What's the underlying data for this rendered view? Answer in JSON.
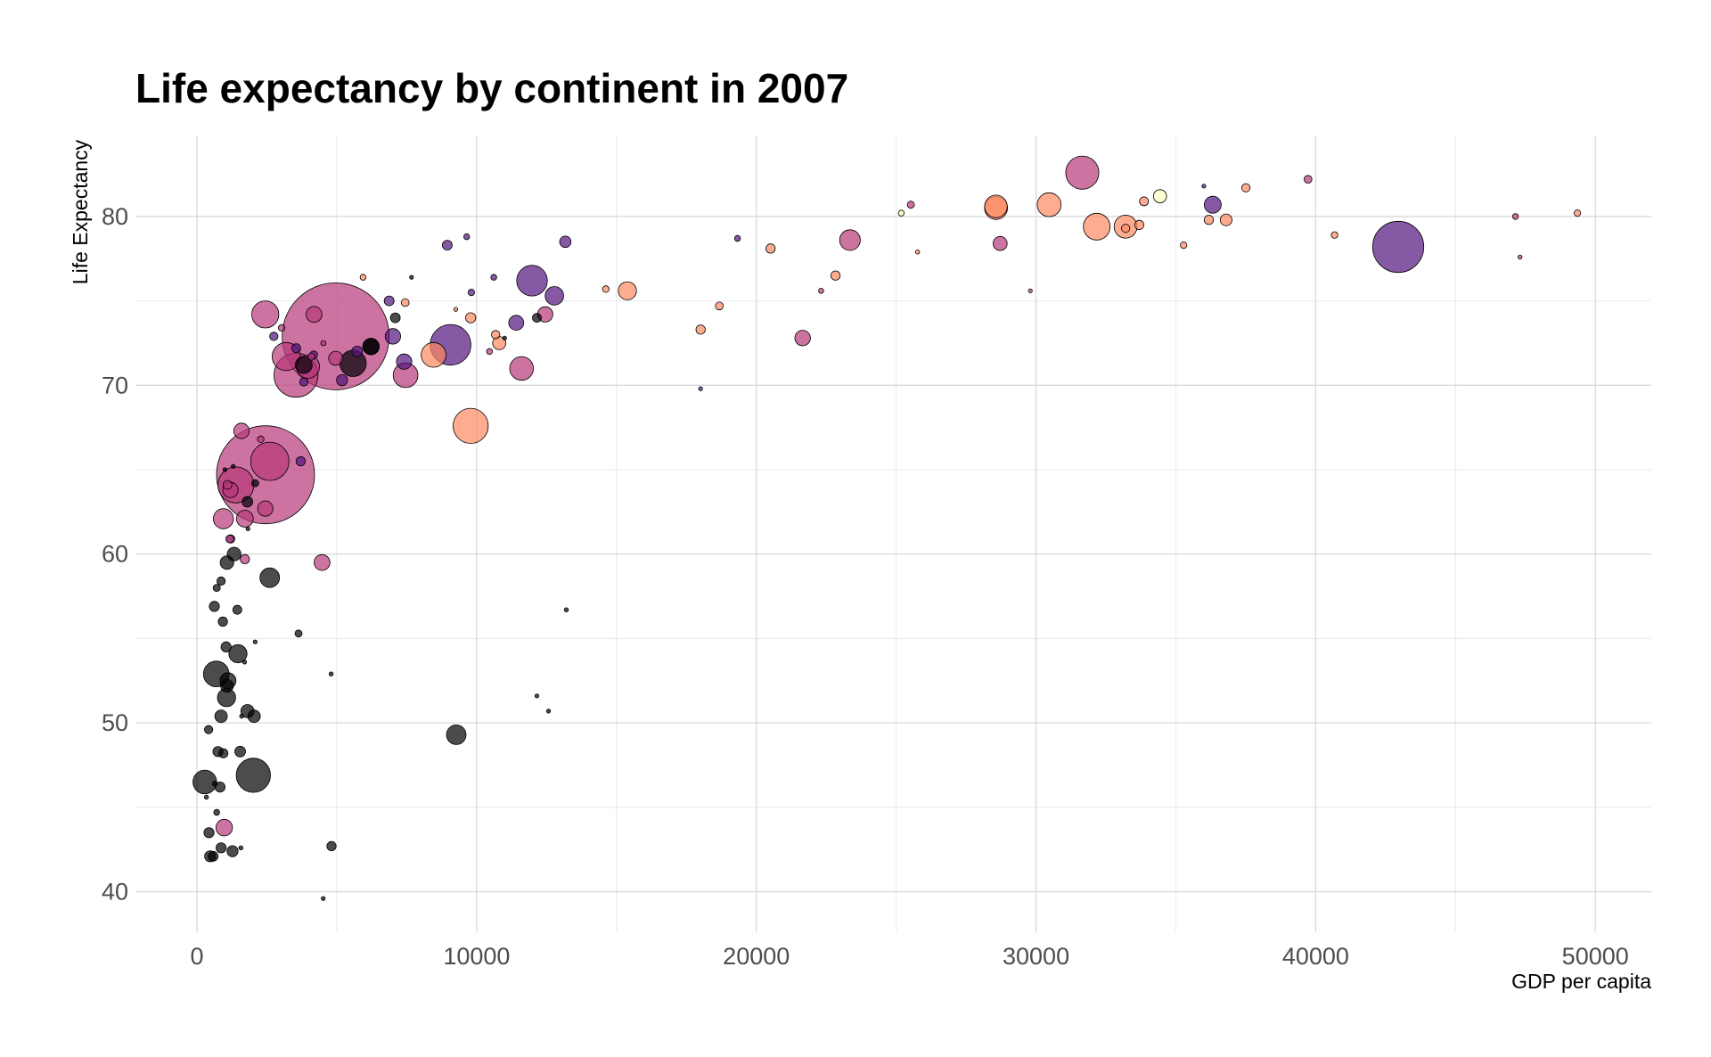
{
  "chart_data": {
    "type": "scatter",
    "title": "Life expectancy by continent in 2007",
    "xlabel": "GDP per capita",
    "ylabel": "Life Expectancy",
    "xlim": [
      -2200,
      52000
    ],
    "ylim": [
      37.6,
      84.8
    ],
    "x_ticks": [
      0,
      10000,
      20000,
      30000,
      40000,
      50000
    ],
    "x_tick_labels": [
      "0",
      "10000",
      "20000",
      "30000",
      "40000",
      "50000"
    ],
    "y_ticks": [
      40,
      50,
      60,
      70,
      80
    ],
    "y_tick_labels": [
      "40",
      "50",
      "60",
      "70",
      "80"
    ],
    "grid": true,
    "legend": "none",
    "point_alpha": 0.7,
    "colors": {
      "africa": "#000004",
      "americas": "#51127c",
      "asia": "#b73779",
      "europe": "#fc8961",
      "oceania": "#fcfdbf"
    },
    "points": [
      {
        "c": "asia",
        "x": 4959,
        "y": 72.9,
        "s": 1319
      },
      {
        "c": "asia",
        "x": 2452,
        "y": 64.7,
        "s": 1110
      },
      {
        "c": "americas",
        "x": 42952,
        "y": 78.2,
        "s": 301
      },
      {
        "c": "asia",
        "x": 3541,
        "y": 70.6,
        "s": 224
      },
      {
        "c": "americas",
        "x": 9066,
        "y": 72.4,
        "s": 190
      },
      {
        "c": "asia",
        "x": 2606,
        "y": 65.5,
        "s": 169
      },
      {
        "c": "africa",
        "x": 2014,
        "y": 46.9,
        "s": 135
      },
      {
        "c": "asia",
        "x": 1391,
        "y": 64.1,
        "s": 150
      },
      {
        "c": "europe",
        "x": 9786,
        "y": 67.6,
        "s": 142
      },
      {
        "c": "asia",
        "x": 31656,
        "y": 82.6,
        "s": 127
      },
      {
        "c": "americas",
        "x": 11978,
        "y": 76.2,
        "s": 109
      },
      {
        "c": "asia",
        "x": 3190,
        "y": 71.7,
        "s": 91
      },
      {
        "c": "africa",
        "x": 278,
        "y": 46.5,
        "s": 65
      },
      {
        "c": "africa",
        "x": 690,
        "y": 52.9,
        "s": 76
      },
      {
        "c": "asia",
        "x": 2442,
        "y": 74.2,
        "s": 85
      },
      {
        "c": "africa",
        "x": 5581,
        "y": 71.3,
        "s": 80
      },
      {
        "c": "europe",
        "x": 32170,
        "y": 79.4,
        "s": 82
      },
      {
        "c": "europe",
        "x": 30470,
        "y": 80.7,
        "s": 66
      },
      {
        "c": "asia",
        "x": 7458,
        "y": 70.6,
        "s": 71
      },
      {
        "c": "europe",
        "x": 8458,
        "y": 71.8,
        "s": 71
      },
      {
        "c": "europe",
        "x": 33203,
        "y": 79.4,
        "s": 61
      },
      {
        "c": "europe",
        "x": 28570,
        "y": 80.5,
        "s": 61
      },
      {
        "c": "europe",
        "x": 28569,
        "y": 80.6,
        "s": 59
      },
      {
        "c": "asia",
        "x": 3970,
        "y": 71.1,
        "s": 62
      },
      {
        "c": "asia",
        "x": 23348,
        "y": 78.6,
        "s": 49
      },
      {
        "c": "africa",
        "x": 9270,
        "y": 49.3,
        "s": 44
      },
      {
        "c": "asia",
        "x": 11606,
        "y": 71.0,
        "s": 65
      },
      {
        "c": "asia",
        "x": 4471,
        "y": 59.5,
        "s": 29
      },
      {
        "c": "americas",
        "x": 12779,
        "y": 75.3,
        "s": 40
      },
      {
        "c": "africa",
        "x": 2602,
        "y": 58.6,
        "s": 44
      },
      {
        "c": "africa",
        "x": 1463,
        "y": 54.1,
        "s": 38
      },
      {
        "c": "africa",
        "x": 1056,
        "y": 51.5,
        "s": 38
      },
      {
        "c": "africa",
        "x": 3820,
        "y": 71.2,
        "s": 33
      },
      {
        "c": "africa",
        "x": 6223,
        "y": 72.3,
        "s": 32
      },
      {
        "c": "africa",
        "x": 1107,
        "y": 52.5,
        "s": 30
      },
      {
        "c": "americas",
        "x": 36319,
        "y": 80.7,
        "s": 33
      },
      {
        "c": "asia",
        "x": 4185,
        "y": 74.2,
        "s": 29
      },
      {
        "c": "asia",
        "x": 21655,
        "y": 72.8,
        "s": 28
      },
      {
        "c": "americas",
        "x": 7006,
        "y": 72.9,
        "s": 28
      },
      {
        "c": "europe",
        "x": 15390,
        "y": 75.6,
        "s": 38
      },
      {
        "c": "europe",
        "x": 36798,
        "y": 79.8,
        "s": 16
      },
      {
        "c": "americas",
        "x": 11416,
        "y": 73.7,
        "s": 26
      },
      {
        "c": "asia",
        "x": 28718,
        "y": 78.4,
        "s": 23
      },
      {
        "c": "americas",
        "x": 7408,
        "y": 71.4,
        "s": 27
      },
      {
        "c": "asia",
        "x": 12452,
        "y": 74.2,
        "s": 27
      },
      {
        "c": "africa",
        "x": 1071,
        "y": 59.5,
        "s": 21
      },
      {
        "c": "africa",
        "x": 1328,
        "y": 60.0,
        "s": 22
      },
      {
        "c": "africa",
        "x": 470,
        "y": 42.1,
        "s": 14
      },
      {
        "c": "africa",
        "x": 863,
        "y": 50.4,
        "s": 18
      },
      {
        "c": "africa",
        "x": 1804,
        "y": 50.7,
        "s": 20
      },
      {
        "c": "africa",
        "x": 1544,
        "y": 48.3,
        "s": 13
      },
      {
        "c": "asia",
        "x": 1197,
        "y": 63.8,
        "s": 27
      },
      {
        "c": "africa",
        "x": 1071,
        "y": 52.2,
        "s": 19
      },
      {
        "c": "europe",
        "x": 33692,
        "y": 79.5,
        "s": 10
      },
      {
        "c": "europe",
        "x": 33860,
        "y": 80.9,
        "s": 9
      },
      {
        "c": "europe",
        "x": 18009,
        "y": 73.3,
        "s": 10
      },
      {
        "c": "europe",
        "x": 20510,
        "y": 78.1,
        "s": 10
      },
      {
        "c": "europe",
        "x": 35278,
        "y": 78.3,
        "s": 5
      },
      {
        "c": "europe",
        "x": 33207,
        "y": 79.3,
        "s": 8
      },
      {
        "c": "europe",
        "x": 37506,
        "y": 81.7,
        "s": 8
      },
      {
        "c": "europe",
        "x": 40676,
        "y": 78.9,
        "s": 5
      },
      {
        "c": "europe",
        "x": 49357,
        "y": 80.2,
        "s": 5
      },
      {
        "c": "europe",
        "x": 25768,
        "y": 77.9,
        "s": 2
      },
      {
        "c": "europe",
        "x": 22833,
        "y": 76.5,
        "s": 10
      },
      {
        "c": "europe",
        "x": 18678,
        "y": 74.7,
        "s": 7
      },
      {
        "c": "europe",
        "x": 10808,
        "y": 72.5,
        "s": 20
      },
      {
        "c": "europe",
        "x": 10680,
        "y": 73.0,
        "s": 8
      },
      {
        "c": "europe",
        "x": 9787,
        "y": 74.0,
        "s": 12
      },
      {
        "c": "europe",
        "x": 7446,
        "y": 74.9,
        "s": 7
      },
      {
        "c": "europe",
        "x": 5937,
        "y": 76.4,
        "s": 4
      },
      {
        "c": "europe",
        "x": 14619,
        "y": 75.7,
        "s": 5
      },
      {
        "c": "europe",
        "x": 9254,
        "y": 74.5,
        "s": 1
      },
      {
        "c": "europe",
        "x": 36181,
        "y": 79.8,
        "s": 10
      },
      {
        "c": "oceania",
        "x": 34435,
        "y": 81.2,
        "s": 20
      },
      {
        "c": "oceania",
        "x": 25185,
        "y": 80.2,
        "s": 4
      },
      {
        "c": "asia",
        "x": 39725,
        "y": 82.2,
        "s": 7
      },
      {
        "c": "asia",
        "x": 47143,
        "y": 80.0,
        "s": 4
      },
      {
        "c": "asia",
        "x": 47307,
        "y": 77.6,
        "s": 2
      },
      {
        "c": "asia",
        "x": 25523,
        "y": 80.7,
        "s": 6
      },
      {
        "c": "asia",
        "x": 22316,
        "y": 75.6,
        "s": 3
      },
      {
        "c": "asia",
        "x": 29796,
        "y": 75.6,
        "s": 1
      },
      {
        "c": "asia",
        "x": 10461,
        "y": 72.0,
        "s": 4
      },
      {
        "c": "asia",
        "x": 4519,
        "y": 72.5,
        "s": 3
      },
      {
        "c": "asia",
        "x": 3025,
        "y": 73.4,
        "s": 5
      },
      {
        "c": "asia",
        "x": 1713,
        "y": 62.1,
        "s": 33
      },
      {
        "c": "asia",
        "x": 944,
        "y": 62.1,
        "s": 47
      },
      {
        "c": "asia",
        "x": 1091,
        "y": 64.1,
        "s": 9
      },
      {
        "c": "asia",
        "x": 2281,
        "y": 66.8,
        "s": 5
      },
      {
        "c": "asia",
        "x": 1593,
        "y": 67.3,
        "s": 28
      },
      {
        "c": "asia",
        "x": 4091,
        "y": 71.7,
        "s": 6
      },
      {
        "c": "asia",
        "x": 4959,
        "y": 71.6,
        "s": 23
      },
      {
        "c": "asia",
        "x": 2441,
        "y": 62.7,
        "s": 27
      },
      {
        "c": "asia",
        "x": 1713,
        "y": 59.7,
        "s": 10
      },
      {
        "c": "asia",
        "x": 1174,
        "y": 60.9,
        "s": 7
      },
      {
        "c": "asia",
        "x": 974,
        "y": 43.8,
        "s": 32
      },
      {
        "c": "americas",
        "x": 19328,
        "y": 78.7,
        "s": 4
      },
      {
        "c": "americas",
        "x": 9645,
        "y": 78.8,
        "s": 4
      },
      {
        "c": "americas",
        "x": 8948,
        "y": 78.3,
        "s": 11
      },
      {
        "c": "americas",
        "x": 13171,
        "y": 78.5,
        "s": 15
      },
      {
        "c": "americas",
        "x": 9809,
        "y": 75.5,
        "s": 5
      },
      {
        "c": "americas",
        "x": 10611,
        "y": 76.4,
        "s": 4
      },
      {
        "c": "americas",
        "x": 6873,
        "y": 75.0,
        "s": 11
      },
      {
        "c": "americas",
        "x": 5728,
        "y": 72.0,
        "s": 13
      },
      {
        "c": "americas",
        "x": 4172,
        "y": 71.8,
        "s": 7
      },
      {
        "c": "americas",
        "x": 3822,
        "y": 70.2,
        "s": 8
      },
      {
        "c": "americas",
        "x": 5186,
        "y": 70.3,
        "s": 14
      },
      {
        "c": "americas",
        "x": 2749,
        "y": 72.9,
        "s": 8
      },
      {
        "c": "americas",
        "x": 3548,
        "y": 72.2,
        "s": 9
      },
      {
        "c": "americas",
        "x": 18009,
        "y": 69.8,
        "s": 1
      },
      {
        "c": "americas",
        "x": 3708,
        "y": 65.5,
        "s": 10
      },
      {
        "c": "americas",
        "x": 1202,
        "y": 60.9,
        "s": 8
      },
      {
        "c": "africa",
        "x": 6223,
        "y": 72.3,
        "s": 28
      },
      {
        "c": "africa",
        "x": 7093,
        "y": 74.0,
        "s": 11
      },
      {
        "c": "africa",
        "x": 12154,
        "y": 74.0,
        "s": 9
      },
      {
        "c": "africa",
        "x": 3632,
        "y": 55.3,
        "s": 6
      },
      {
        "c": "africa",
        "x": 13206,
        "y": 56.7,
        "s": 2
      },
      {
        "c": "africa",
        "x": 12570,
        "y": 50.7,
        "s": 1
      },
      {
        "c": "africa",
        "x": 12154,
        "y": 51.6,
        "s": 1
      },
      {
        "c": "africa",
        "x": 4797,
        "y": 52.9,
        "s": 2
      },
      {
        "c": "africa",
        "x": 4811,
        "y": 42.7,
        "s": 10
      },
      {
        "c": "africa",
        "x": 4513,
        "y": 39.6,
        "s": 1
      },
      {
        "c": "africa",
        "x": 1441,
        "y": 56.7,
        "s": 9
      },
      {
        "c": "africa",
        "x": 619,
        "y": 56.9,
        "s": 12
      },
      {
        "c": "africa",
        "x": 926,
        "y": 56.0,
        "s": 10
      },
      {
        "c": "africa",
        "x": 1042,
        "y": 54.5,
        "s": 12
      },
      {
        "c": "africa",
        "x": 2082,
        "y": 54.8,
        "s": 1
      },
      {
        "c": "africa",
        "x": 1704,
        "y": 53.6,
        "s": 1
      },
      {
        "c": "africa",
        "x": 706,
        "y": 58.0,
        "s": 6
      },
      {
        "c": "africa",
        "x": 863,
        "y": 58.4,
        "s": 8
      },
      {
        "c": "africa",
        "x": 1598,
        "y": 50.4,
        "s": 2
      },
      {
        "c": "africa",
        "x": 2042,
        "y": 50.4,
        "s": 18
      },
      {
        "c": "africa",
        "x": 415,
        "y": 49.6,
        "s": 8
      },
      {
        "c": "africa",
        "x": 752,
        "y": 48.3,
        "s": 12
      },
      {
        "c": "africa",
        "x": 943,
        "y": 48.2,
        "s": 10
      },
      {
        "c": "africa",
        "x": 824,
        "y": 46.2,
        "s": 12
      },
      {
        "c": "africa",
        "x": 641,
        "y": 46.4,
        "s": 3
      },
      {
        "c": "africa",
        "x": 706,
        "y": 44.7,
        "s": 4
      },
      {
        "c": "africa",
        "x": 430,
        "y": 43.5,
        "s": 12
      },
      {
        "c": "africa",
        "x": 579,
        "y": 42.1,
        "s": 11
      },
      {
        "c": "africa",
        "x": 862,
        "y": 42.6,
        "s": 12
      },
      {
        "c": "africa",
        "x": 1270,
        "y": 42.4,
        "s": 14
      },
      {
        "c": "africa",
        "x": 1569,
        "y": 42.6,
        "s": 2
      },
      {
        "c": "africa",
        "x": 1803,
        "y": 63.1,
        "s": 13
      },
      {
        "c": "africa",
        "x": 2082,
        "y": 64.2,
        "s": 6
      },
      {
        "c": "africa",
        "x": 1295,
        "y": 65.2,
        "s": 1
      },
      {
        "c": "africa",
        "x": 7670,
        "y": 76.4,
        "s": 1
      },
      {
        "c": "africa",
        "x": 11000,
        "y": 72.8,
        "s": 1
      },
      {
        "c": "africa",
        "x": 1820,
        "y": 61.5,
        "s": 1
      },
      {
        "c": "africa",
        "x": 335,
        "y": 45.6,
        "s": 2
      },
      {
        "c": "africa",
        "x": 1000,
        "y": 65.0,
        "s": 1
      },
      {
        "c": "americas",
        "x": 36000,
        "y": 81.8,
        "s": 1
      }
    ]
  }
}
